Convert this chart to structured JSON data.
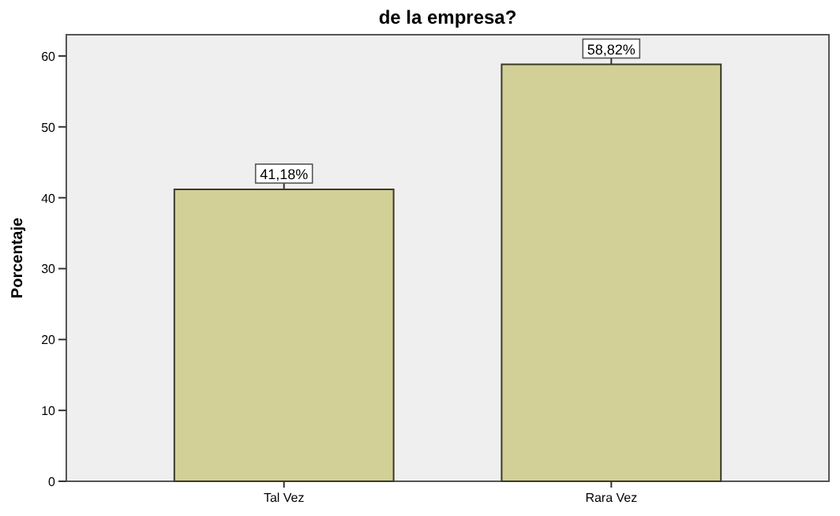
{
  "chart_data": {
    "type": "bar",
    "title": "de la empresa?",
    "ylabel": "Porcentaje",
    "categories": [
      "Tal Vez",
      "Rara Vez"
    ],
    "values": [
      41.18,
      58.82
    ],
    "value_labels": [
      "41,18%",
      "58,82%"
    ],
    "color": "#d2d096",
    "ylim": [
      0,
      63
    ],
    "yticks": [
      0,
      10,
      20,
      30,
      40,
      50,
      60
    ]
  }
}
